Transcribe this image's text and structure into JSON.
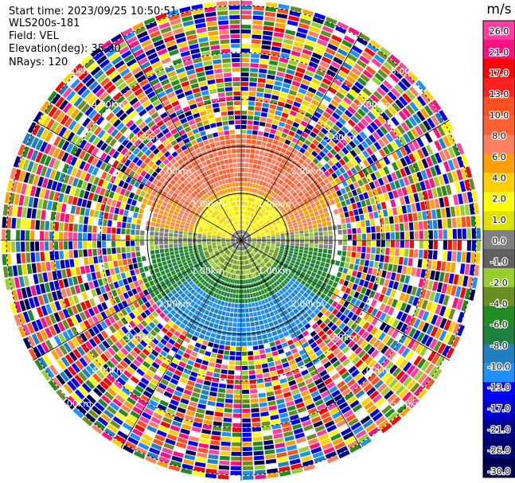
{
  "header": {
    "start_time": "Start time: 2023/09/25 10:50:51",
    "instrument": "WLS200s-181",
    "field": "Field: VEL",
    "elevation": "Elevation(deg): 35.30",
    "nrays": "NRays: 120"
  },
  "chart_data": {
    "type": "heatmap",
    "projection": "polar (PPI)",
    "field": "VEL",
    "units": "m/s",
    "range_ring_labels": [
      "1.00km",
      "2.00km",
      "3.00km",
      "4.00km",
      "5.00km"
    ],
    "rays": 120,
    "colorbar": {
      "label": "m/s",
      "ticks": [
        "26.0",
        "21.0",
        "17.0",
        "13.0",
        "10.0",
        "8.0",
        "6.0",
        "4.0",
        "2.0",
        "1.0",
        "0.0",
        "-1.0",
        "-2.0",
        "-4.0",
        "-6.0",
        "-8.0",
        "-10.0",
        "-13.0",
        "-17.0",
        "-21.0",
        "-26.0",
        "-30.0"
      ],
      "colors": [
        "#ff40a0",
        "#ff1080",
        "#ff0000",
        "#ff2020",
        "#ff5020",
        "#ff6030",
        "#ff8060",
        "#ffa000",
        "#ffd000",
        "#ffff00",
        "#e0e000",
        "#808080",
        "#606060",
        "#9acd32",
        "#6b8e23",
        "#228b22",
        "#208040",
        "#2080c0",
        "#1e90ff",
        "#0000ff",
        "#0000cd",
        "#00008b",
        "#000070",
        "#000050"
      ]
    }
  }
}
